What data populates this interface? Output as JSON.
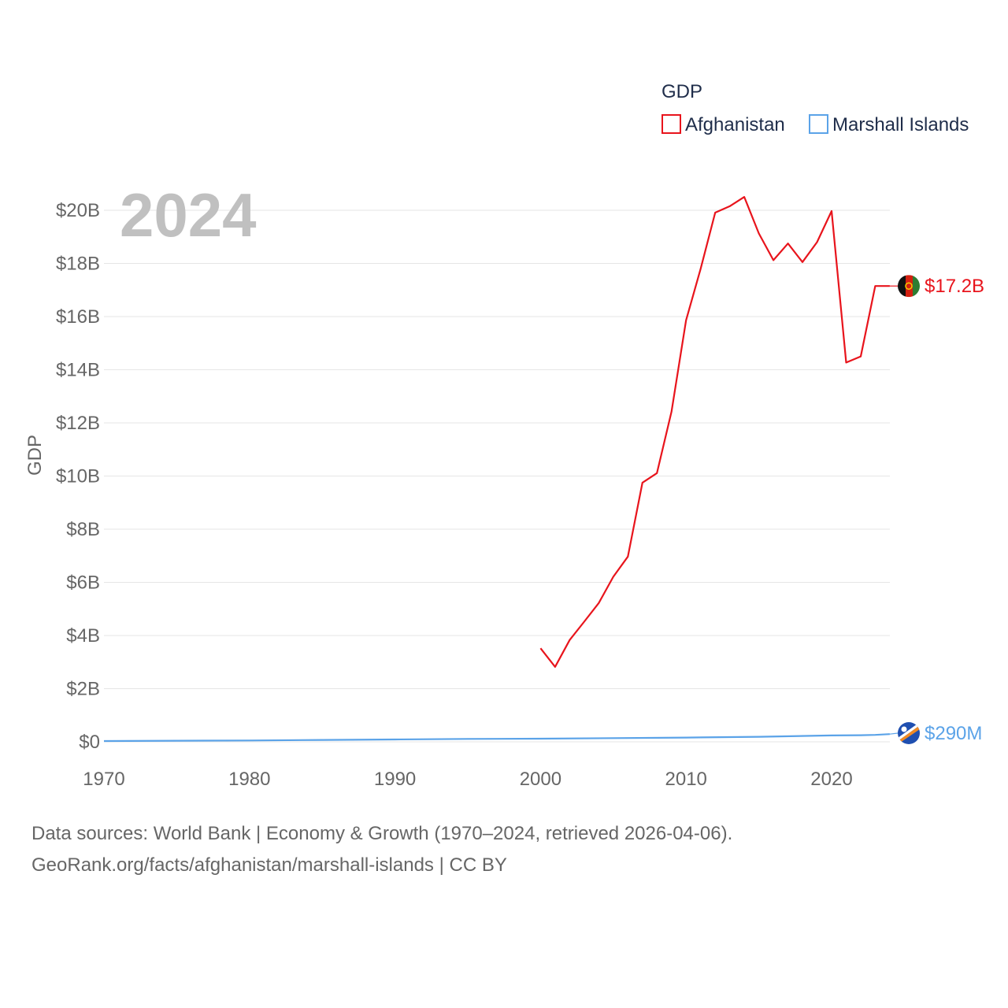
{
  "chart_data": {
    "type": "line",
    "title": "GDP",
    "year_label": "2024",
    "ylabel": "GDP",
    "xlabel": "",
    "x_range": [
      1970,
      2024
    ],
    "ylim": [
      0,
      21000000000
    ],
    "x_ticks": [
      1970,
      1980,
      1990,
      2000,
      2010,
      2020
    ],
    "x_tick_labels": [
      "1970",
      "1980",
      "1990",
      "2000",
      "2010",
      "2020"
    ],
    "y_ticks": [
      0,
      2000000000,
      4000000000,
      6000000000,
      8000000000,
      10000000000,
      12000000000,
      14000000000,
      16000000000,
      18000000000,
      20000000000
    ],
    "y_tick_labels": [
      "$0",
      "$2B",
      "$4B",
      "$6B",
      "$8B",
      "$10B",
      "$12B",
      "$14B",
      "$16B",
      "$18B",
      "$20B"
    ],
    "legend_position": "top-right",
    "series": [
      {
        "name": "Afghanistan",
        "color": "#e8141c",
        "end_label": "$17.2B",
        "flag": "afghanistan-flag",
        "points": [
          [
            2000,
            3.52
          ],
          [
            2001,
            2.82
          ],
          [
            2002,
            3.83
          ],
          [
            2003,
            4.52
          ],
          [
            2004,
            5.22
          ],
          [
            2005,
            6.21
          ],
          [
            2006,
            6.97
          ],
          [
            2007,
            9.75
          ],
          [
            2008,
            10.11
          ],
          [
            2009,
            12.42
          ],
          [
            2010,
            15.86
          ],
          [
            2011,
            17.8
          ],
          [
            2012,
            19.91
          ],
          [
            2013,
            20.15
          ],
          [
            2014,
            20.5
          ],
          [
            2015,
            19.13
          ],
          [
            2016,
            18.12
          ],
          [
            2017,
            18.75
          ],
          [
            2018,
            18.05
          ],
          [
            2019,
            18.8
          ],
          [
            2020,
            19.97
          ],
          [
            2021,
            14.27
          ],
          [
            2022,
            14.5
          ],
          [
            2023,
            17.15
          ],
          [
            2024,
            17.15
          ]
        ]
      },
      {
        "name": "Marshall Islands",
        "color": "#5ba3e8",
        "end_label": "$290M",
        "flag": "marshall-islands-flag",
        "points": [
          [
            1970,
            0.03
          ],
          [
            1975,
            0.04
          ],
          [
            1980,
            0.05
          ],
          [
            1985,
            0.07
          ],
          [
            1990,
            0.09
          ],
          [
            1995,
            0.11
          ],
          [
            2000,
            0.12
          ],
          [
            2005,
            0.14
          ],
          [
            2010,
            0.16
          ],
          [
            2015,
            0.19
          ],
          [
            2020,
            0.24
          ],
          [
            2022,
            0.25
          ],
          [
            2023,
            0.26
          ],
          [
            2024,
            0.29
          ]
        ]
      }
    ],
    "value_unit": "billions USD"
  },
  "footer": {
    "source_line": "Data sources: World Bank | Economy & Growth (1970–2024, retrieved 2026-04-06).",
    "url_line": "GeoRank.org/facts/afghanistan/marshall-islands | CC BY"
  }
}
